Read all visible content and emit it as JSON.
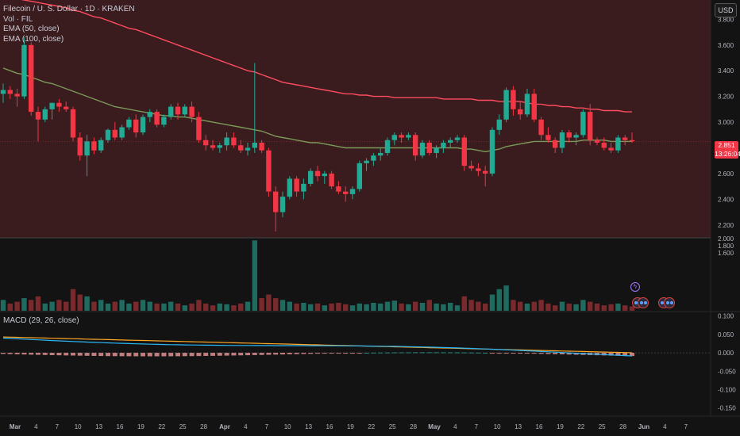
{
  "legend": {
    "title": "Filecoin / U. S. Dollar · 1D · KRAKEN",
    "vol": "Vol · FIL",
    "ema50": "EMA (50, close)",
    "ema100": "EMA (100, close)"
  },
  "currency": "USD",
  "macd_label": "MACD (29, 26, close)",
  "last_price": "2.851",
  "countdown": "13:26:04",
  "colors": {
    "up": "#22ab94",
    "down": "#f23645",
    "ema50": "#7c9a5a",
    "ema100": "#ff4d5e",
    "macd": "#29b6f6",
    "signal": "#ffa726",
    "background": "#131313",
    "highlight": "#3a1b1e"
  },
  "price_axis": [
    "3.800",
    "3.600",
    "3.400",
    "3.200",
    "3.000",
    "2.800",
    "2.600",
    "2.400",
    "2.200"
  ],
  "volume_axis": [
    "2.000",
    "1.800",
    "1.600"
  ],
  "macd_axis": [
    "0.100",
    "0.050",
    "0.000",
    "-0.050",
    "-0.100",
    "-0.150"
  ],
  "time_axis": [
    "Mar",
    "4",
    "7",
    "10",
    "13",
    "16",
    "19",
    "22",
    "25",
    "28",
    "Apr",
    "4",
    "7",
    "10",
    "13",
    "16",
    "19",
    "22",
    "25",
    "28",
    "May",
    "4",
    "7",
    "10",
    "13",
    "16",
    "19",
    "22",
    "25",
    "28",
    "Jun",
    "4",
    "7"
  ],
  "chart_data": {
    "type": "candlestick",
    "price_range": [
      2.1,
      3.95
    ],
    "candles": [
      {
        "o": 3.22,
        "h": 3.3,
        "l": 3.15,
        "c": 3.25
      },
      {
        "o": 3.25,
        "h": 3.28,
        "l": 3.18,
        "c": 3.22
      },
      {
        "o": 3.22,
        "h": 3.26,
        "l": 3.12,
        "c": 3.2
      },
      {
        "o": 3.2,
        "h": 3.66,
        "l": 3.18,
        "c": 3.6
      },
      {
        "o": 3.6,
        "h": 3.62,
        "l": 3.05,
        "c": 3.08
      },
      {
        "o": 3.08,
        "h": 3.12,
        "l": 2.85,
        "c": 3.02
      },
      {
        "o": 3.02,
        "h": 3.12,
        "l": 3.0,
        "c": 3.1
      },
      {
        "o": 3.1,
        "h": 3.15,
        "l": 3.02,
        "c": 3.15
      },
      {
        "o": 3.15,
        "h": 3.18,
        "l": 3.08,
        "c": 3.12
      },
      {
        "o": 3.12,
        "h": 3.16,
        "l": 3.08,
        "c": 3.1
      },
      {
        "o": 3.1,
        "h": 3.12,
        "l": 2.85,
        "c": 2.88
      },
      {
        "o": 2.88,
        "h": 2.92,
        "l": 2.7,
        "c": 2.74
      },
      {
        "o": 2.74,
        "h": 2.9,
        "l": 2.58,
        "c": 2.85
      },
      {
        "o": 2.85,
        "h": 2.88,
        "l": 2.75,
        "c": 2.78
      },
      {
        "o": 2.78,
        "h": 2.88,
        "l": 2.76,
        "c": 2.86
      },
      {
        "o": 2.86,
        "h": 2.95,
        "l": 2.84,
        "c": 2.94
      },
      {
        "o": 2.94,
        "h": 3.0,
        "l": 2.86,
        "c": 2.88
      },
      {
        "o": 2.88,
        "h": 2.98,
        "l": 2.86,
        "c": 2.96
      },
      {
        "o": 2.96,
        "h": 3.04,
        "l": 2.94,
        "c": 3.02
      },
      {
        "o": 3.02,
        "h": 3.06,
        "l": 2.88,
        "c": 2.92
      },
      {
        "o": 2.92,
        "h": 3.06,
        "l": 2.9,
        "c": 3.04
      },
      {
        "o": 3.04,
        "h": 3.1,
        "l": 3.0,
        "c": 3.08
      },
      {
        "o": 3.08,
        "h": 3.1,
        "l": 2.96,
        "c": 2.98
      },
      {
        "o": 2.98,
        "h": 3.06,
        "l": 2.96,
        "c": 3.04
      },
      {
        "o": 3.04,
        "h": 3.14,
        "l": 3.02,
        "c": 3.12
      },
      {
        "o": 3.12,
        "h": 3.15,
        "l": 3.02,
        "c": 3.06
      },
      {
        "o": 3.06,
        "h": 3.14,
        "l": 3.04,
        "c": 3.12
      },
      {
        "o": 3.12,
        "h": 3.16,
        "l": 3.0,
        "c": 3.04
      },
      {
        "o": 3.04,
        "h": 3.08,
        "l": 2.84,
        "c": 2.86
      },
      {
        "o": 2.86,
        "h": 2.9,
        "l": 2.78,
        "c": 2.82
      },
      {
        "o": 2.82,
        "h": 2.86,
        "l": 2.78,
        "c": 2.8
      },
      {
        "o": 2.8,
        "h": 2.84,
        "l": 2.76,
        "c": 2.82
      },
      {
        "o": 2.82,
        "h": 2.92,
        "l": 2.78,
        "c": 2.88
      },
      {
        "o": 2.88,
        "h": 2.92,
        "l": 2.8,
        "c": 2.82
      },
      {
        "o": 2.82,
        "h": 2.86,
        "l": 2.76,
        "c": 2.78
      },
      {
        "o": 2.78,
        "h": 2.84,
        "l": 2.74,
        "c": 2.8
      },
      {
        "o": 2.8,
        "h": 3.46,
        "l": 2.76,
        "c": 2.84
      },
      {
        "o": 2.84,
        "h": 2.86,
        "l": 2.76,
        "c": 2.78
      },
      {
        "o": 2.78,
        "h": 2.8,
        "l": 2.42,
        "c": 2.46
      },
      {
        "o": 2.46,
        "h": 2.5,
        "l": 2.15,
        "c": 2.3
      },
      {
        "o": 2.3,
        "h": 2.46,
        "l": 2.26,
        "c": 2.42
      },
      {
        "o": 2.42,
        "h": 2.58,
        "l": 2.4,
        "c": 2.56
      },
      {
        "o": 2.56,
        "h": 2.58,
        "l": 2.42,
        "c": 2.46
      },
      {
        "o": 2.46,
        "h": 2.56,
        "l": 2.4,
        "c": 2.52
      },
      {
        "o": 2.52,
        "h": 2.64,
        "l": 2.5,
        "c": 2.62
      },
      {
        "o": 2.62,
        "h": 2.66,
        "l": 2.54,
        "c": 2.58
      },
      {
        "o": 2.58,
        "h": 2.62,
        "l": 2.52,
        "c": 2.6
      },
      {
        "o": 2.6,
        "h": 2.62,
        "l": 2.48,
        "c": 2.5
      },
      {
        "o": 2.5,
        "h": 2.54,
        "l": 2.44,
        "c": 2.46
      },
      {
        "o": 2.46,
        "h": 2.5,
        "l": 2.38,
        "c": 2.44
      },
      {
        "o": 2.44,
        "h": 2.5,
        "l": 2.4,
        "c": 2.48
      },
      {
        "o": 2.48,
        "h": 2.7,
        "l": 2.46,
        "c": 2.68
      },
      {
        "o": 2.68,
        "h": 2.72,
        "l": 2.62,
        "c": 2.7
      },
      {
        "o": 2.7,
        "h": 2.76,
        "l": 2.66,
        "c": 2.74
      },
      {
        "o": 2.74,
        "h": 2.8,
        "l": 2.7,
        "c": 2.76
      },
      {
        "o": 2.76,
        "h": 2.88,
        "l": 2.74,
        "c": 2.86
      },
      {
        "o": 2.86,
        "h": 2.92,
        "l": 2.82,
        "c": 2.9
      },
      {
        "o": 2.9,
        "h": 2.92,
        "l": 2.84,
        "c": 2.88
      },
      {
        "o": 2.88,
        "h": 2.92,
        "l": 2.86,
        "c": 2.9
      },
      {
        "o": 2.9,
        "h": 2.92,
        "l": 2.7,
        "c": 2.74
      },
      {
        "o": 2.74,
        "h": 2.86,
        "l": 2.72,
        "c": 2.84
      },
      {
        "o": 2.84,
        "h": 2.86,
        "l": 2.74,
        "c": 2.76
      },
      {
        "o": 2.76,
        "h": 2.82,
        "l": 2.72,
        "c": 2.8
      },
      {
        "o": 2.8,
        "h": 2.86,
        "l": 2.76,
        "c": 2.84
      },
      {
        "o": 2.84,
        "h": 2.88,
        "l": 2.8,
        "c": 2.86
      },
      {
        "o": 2.86,
        "h": 2.9,
        "l": 2.84,
        "c": 2.88
      },
      {
        "o": 2.88,
        "h": 2.9,
        "l": 2.62,
        "c": 2.66
      },
      {
        "o": 2.66,
        "h": 2.7,
        "l": 2.62,
        "c": 2.64
      },
      {
        "o": 2.64,
        "h": 2.68,
        "l": 2.58,
        "c": 2.62
      },
      {
        "o": 2.62,
        "h": 2.66,
        "l": 2.5,
        "c": 2.6
      },
      {
        "o": 2.6,
        "h": 2.96,
        "l": 2.58,
        "c": 2.94
      },
      {
        "o": 2.94,
        "h": 3.06,
        "l": 2.9,
        "c": 3.02
      },
      {
        "o": 3.02,
        "h": 3.27,
        "l": 3.0,
        "c": 3.25
      },
      {
        "o": 3.25,
        "h": 3.28,
        "l": 3.05,
        "c": 3.1
      },
      {
        "o": 3.1,
        "h": 3.16,
        "l": 3.02,
        "c": 3.06
      },
      {
        "o": 3.06,
        "h": 3.26,
        "l": 3.04,
        "c": 3.22
      },
      {
        "o": 3.22,
        "h": 3.26,
        "l": 3.0,
        "c": 3.02
      },
      {
        "o": 3.02,
        "h": 3.04,
        "l": 2.86,
        "c": 2.9
      },
      {
        "o": 2.9,
        "h": 2.96,
        "l": 2.84,
        "c": 2.86
      },
      {
        "o": 2.86,
        "h": 2.88,
        "l": 2.76,
        "c": 2.8
      },
      {
        "o": 2.8,
        "h": 2.94,
        "l": 2.76,
        "c": 2.92
      },
      {
        "o": 2.92,
        "h": 2.94,
        "l": 2.84,
        "c": 2.88
      },
      {
        "o": 2.88,
        "h": 2.92,
        "l": 2.82,
        "c": 2.9
      },
      {
        "o": 2.9,
        "h": 3.1,
        "l": 2.88,
        "c": 3.08
      },
      {
        "o": 3.08,
        "h": 3.14,
        "l": 2.82,
        "c": 2.86
      },
      {
        "o": 2.86,
        "h": 2.88,
        "l": 2.82,
        "c": 2.84
      },
      {
        "o": 2.84,
        "h": 2.88,
        "l": 2.78,
        "c": 2.8
      },
      {
        "o": 2.8,
        "h": 2.84,
        "l": 2.76,
        "c": 2.78
      },
      {
        "o": 2.78,
        "h": 2.9,
        "l": 2.76,
        "c": 2.88
      },
      {
        "o": 2.88,
        "h": 2.9,
        "l": 2.82,
        "c": 2.86
      },
      {
        "o": 2.86,
        "h": 2.92,
        "l": 2.84,
        "c": 2.85
      }
    ],
    "volume": [
      0.3,
      0.2,
      0.25,
      0.35,
      0.3,
      0.4,
      0.2,
      0.25,
      0.3,
      0.25,
      0.6,
      0.45,
      0.4,
      0.25,
      0.3,
      0.2,
      0.25,
      0.3,
      0.2,
      0.25,
      0.3,
      0.25,
      0.2,
      0.2,
      0.25,
      0.2,
      0.15,
      0.2,
      0.3,
      0.2,
      0.15,
      0.2,
      0.18,
      0.15,
      0.2,
      0.25,
      1.95,
      0.35,
      0.45,
      0.35,
      0.3,
      0.25,
      0.2,
      0.22,
      0.18,
      0.2,
      0.15,
      0.2,
      0.22,
      0.18,
      0.15,
      0.2,
      0.18,
      0.22,
      0.2,
      0.25,
      0.28,
      0.2,
      0.18,
      0.25,
      0.22,
      0.3,
      0.2,
      0.18,
      0.22,
      0.15,
      0.4,
      0.3,
      0.25,
      0.2,
      0.45,
      0.6,
      0.7,
      0.3,
      0.25,
      0.2,
      0.25,
      0.3,
      0.2,
      0.15,
      0.25,
      0.2,
      0.18,
      0.3,
      0.25,
      0.2,
      0.15,
      0.18,
      0.2,
      0.15,
      0.12
    ],
    "volume_range": [
      0,
      2.0
    ],
    "ema50": [
      3.42,
      3.4,
      3.38,
      3.37,
      3.35,
      3.33,
      3.31,
      3.3,
      3.28,
      3.26,
      3.24,
      3.22,
      3.2,
      3.18,
      3.16,
      3.14,
      3.12,
      3.11,
      3.1,
      3.09,
      3.08,
      3.07,
      3.06,
      3.05,
      3.05,
      3.04,
      3.04,
      3.03,
      3.02,
      3.01,
      3.0,
      2.99,
      2.98,
      2.97,
      2.96,
      2.95,
      2.94,
      2.93,
      2.91,
      2.89,
      2.88,
      2.87,
      2.86,
      2.85,
      2.84,
      2.84,
      2.83,
      2.82,
      2.81,
      2.8,
      2.8,
      2.8,
      2.8,
      2.8,
      2.8,
      2.8,
      2.8,
      2.8,
      2.8,
      2.8,
      2.8,
      2.8,
      2.8,
      2.8,
      2.8,
      2.8,
      2.79,
      2.79,
      2.78,
      2.77,
      2.78,
      2.79,
      2.81,
      2.82,
      2.83,
      2.84,
      2.85,
      2.85,
      2.85,
      2.85,
      2.85,
      2.85,
      2.85,
      2.86,
      2.86,
      2.86,
      2.86,
      2.85,
      2.85,
      2.85,
      2.85
    ],
    "ema100": [
      3.98,
      3.97,
      3.96,
      3.95,
      3.94,
      3.93,
      3.92,
      3.91,
      3.9,
      3.89,
      3.87,
      3.86,
      3.84,
      3.82,
      3.81,
      3.79,
      3.77,
      3.75,
      3.73,
      3.72,
      3.7,
      3.68,
      3.66,
      3.64,
      3.62,
      3.6,
      3.58,
      3.56,
      3.54,
      3.52,
      3.5,
      3.48,
      3.46,
      3.44,
      3.42,
      3.4,
      3.39,
      3.37,
      3.35,
      3.33,
      3.31,
      3.3,
      3.29,
      3.28,
      3.27,
      3.26,
      3.25,
      3.24,
      3.23,
      3.22,
      3.22,
      3.21,
      3.21,
      3.2,
      3.2,
      3.2,
      3.19,
      3.19,
      3.19,
      3.19,
      3.19,
      3.19,
      3.19,
      3.18,
      3.18,
      3.18,
      3.18,
      3.18,
      3.17,
      3.17,
      3.17,
      3.16,
      3.16,
      3.16,
      3.16,
      3.15,
      3.14,
      3.14,
      3.13,
      3.13,
      3.12,
      3.12,
      3.11,
      3.11,
      3.1,
      3.1,
      3.09,
      3.09,
      3.09,
      3.08,
      3.08
    ],
    "macd_range": [
      -0.17,
      0.11
    ],
    "macd_start": 0.04,
    "macd_end": -0.005
  }
}
